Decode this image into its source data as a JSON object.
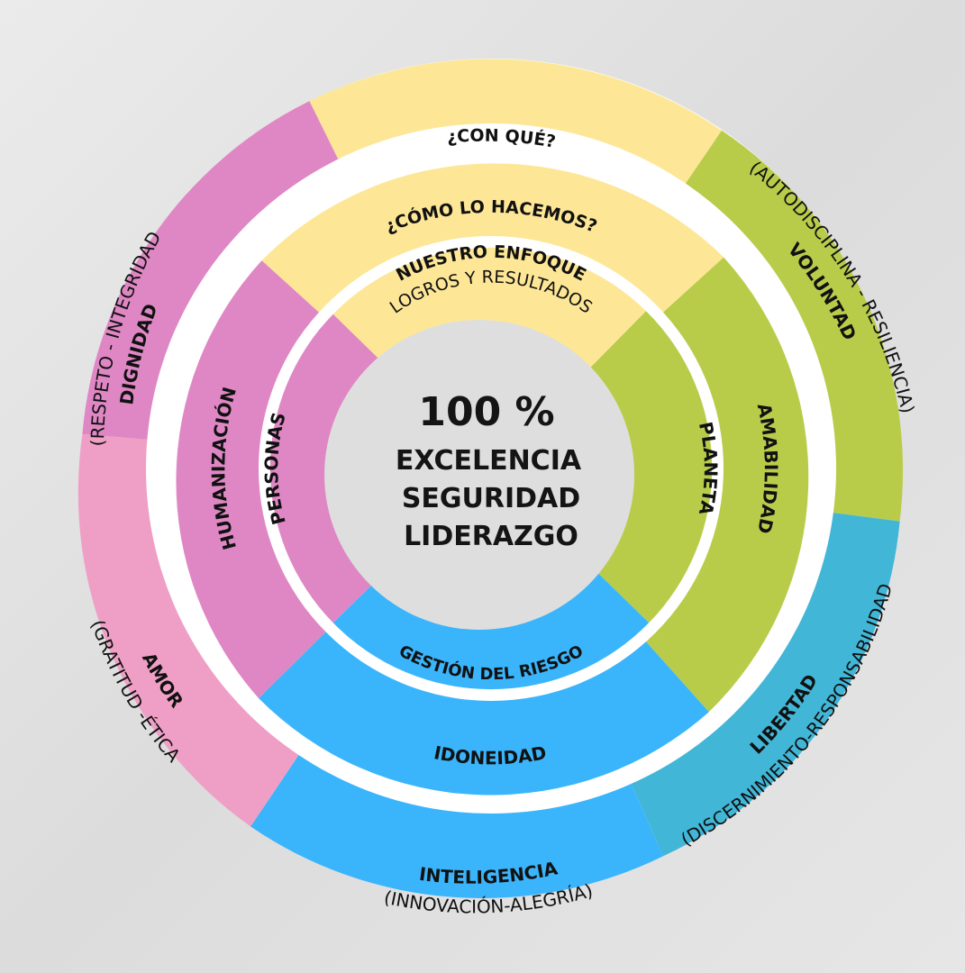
{
  "colors": {
    "yellow": "#fde797",
    "green": "#b9cc4a",
    "blue": "#3ab5fb",
    "teal": "#41b6d7",
    "magenta": "#df87c4",
    "pink": "#ef9fc6",
    "white": "#ffffff",
    "center": "#dedede"
  },
  "center": {
    "percent": "100 %",
    "line1": "EXCELENCIA",
    "line2": "SEGURIDAD",
    "line3": "LIDERAZGO"
  },
  "inner_ring": {
    "top_title": "NUESTRO ENFOQUE",
    "top_subtitle": "LOGROS Y RESULTADOS",
    "left": "PERSONAS",
    "right": "PLANETA",
    "bottom": "GESTIÓN DEL RIESGO"
  },
  "middle_ring": {
    "top": "¿CÓMO LO HACEMOS?",
    "left": "HUMANIZACIÓN",
    "right": "AMABILIDAD",
    "bottom": "IDONEIDAD"
  },
  "outer_ring": {
    "top": "¿CON QUÉ?",
    "top_left_title": "DIGNIDAD",
    "top_left_sub": "(RESPETO - INTEGRIDAD",
    "left_title": "AMOR",
    "left_sub": "(GRATITUD -ÉTICA",
    "bottom_title": "INTELIGENCIA",
    "bottom_sub": "(INNOVACIÓN-ALEGRÍA)",
    "bottom_right_title": "LIBERTAD",
    "bottom_right_sub": "(DISCERNIMIENTO-RESPONSABILIDAD",
    "top_right_title": "VOLUNTAD",
    "top_right_sub": "(AUTODISCIPLINA - RESILIENCIA)"
  }
}
